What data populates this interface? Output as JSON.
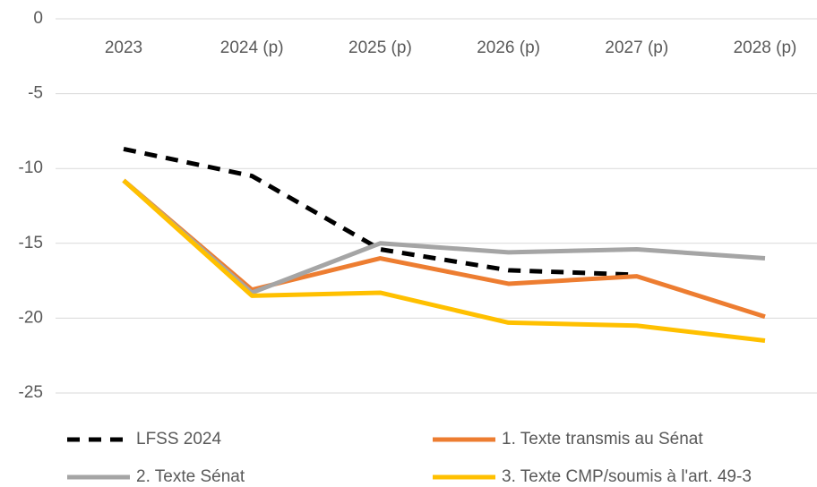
{
  "chart_data": {
    "type": "line",
    "categories": [
      "2023",
      "2024 (p)",
      "2025 (p)",
      "2026 (p)",
      "2027 (p)",
      "2028 (p)"
    ],
    "series": [
      {
        "name": "LFSS 2024",
        "color": "#000000",
        "line_style": "dashed",
        "values": [
          -8.7,
          -10.5,
          -15.4,
          -16.8,
          -17.1,
          null
        ]
      },
      {
        "name": "1. Texte transmis au Sénat",
        "color": "#ed7d31",
        "line_style": "solid",
        "values": [
          -10.8,
          -18.1,
          -16.0,
          -17.7,
          -17.2,
          -19.9
        ]
      },
      {
        "name": "2. Texte Sénat",
        "color": "#a5a5a5",
        "line_style": "solid",
        "values": [
          -10.8,
          -18.3,
          -15.0,
          -15.6,
          -15.4,
          -16.0
        ]
      },
      {
        "name": "3. Texte CMP/soumis à l'art. 49-3",
        "color": "#ffc000",
        "line_style": "solid",
        "values": [
          -10.8,
          -18.5,
          -18.3,
          -20.3,
          -20.5,
          -21.5
        ]
      }
    ],
    "ylim": [
      -25,
      0
    ],
    "yticks": [
      0,
      -5,
      -10,
      -15,
      -20,
      -25
    ],
    "grid": true,
    "legend": "bottom"
  }
}
